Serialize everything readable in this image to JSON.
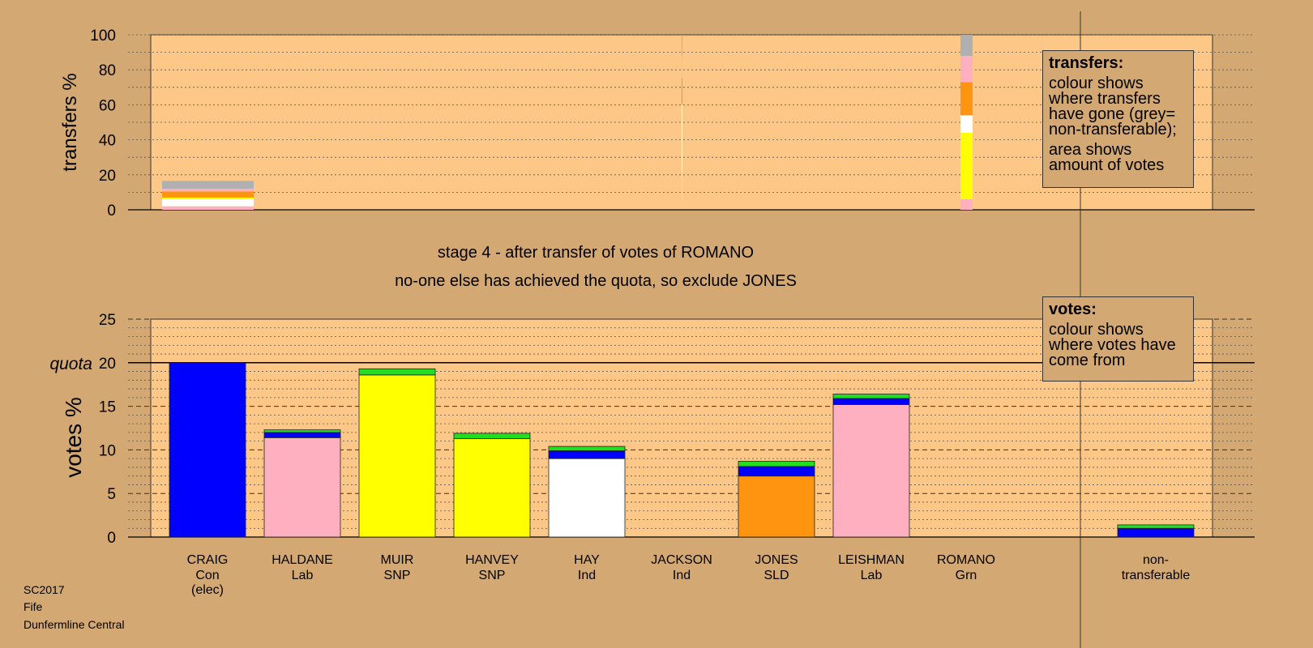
{
  "caption": {
    "line1": "stage 4 - after transfer of votes of ROMANO",
    "line2": "no-one else has achieved the quota, so exclude JONES"
  },
  "legend_transfers": {
    "title": "transfers:",
    "p1": "colour shows where transfers have gone (grey= non-transferable);",
    "p2": "area shows amount of votes"
  },
  "legend_votes": {
    "title": "votes:",
    "p1": "colour shows where votes have come from"
  },
  "footer": {
    "line1": "SC2017",
    "line2": "Fife",
    "line3": "Dunfermline Central"
  },
  "colors": {
    "background": "#d4a872",
    "plot_bg": "#fdc887",
    "Con": "#0000ff",
    "Lab": "#ffb0c0",
    "SNP": "#ffff00",
    "Ind": "#ffffff",
    "SLD": "#ff9410",
    "Grn": "#22dd22",
    "non_transferable": "#b0b0b0"
  },
  "chart_data": [
    {
      "type": "bar",
      "stacked": true,
      "ylabel": "transfers %",
      "ylim": [
        0,
        100
      ],
      "yticks": [
        0,
        20,
        40,
        60,
        80,
        100
      ],
      "columns": [
        {
          "category": "CRAIG",
          "segments": [
            {
              "party": "Lab",
              "from": 0,
              "to": 2
            },
            {
              "party": "Ind",
              "from": 2,
              "to": 6
            },
            {
              "party": "SNP",
              "from": 6,
              "to": 7
            },
            {
              "party": "SLD",
              "from": 7,
              "to": 10.5
            },
            {
              "party": "Lab",
              "from": 10.5,
              "to": 12
            },
            {
              "party": "non_transferable",
              "from": 12,
              "to": 16.5
            }
          ]
        },
        {
          "category": "JACKSON",
          "segments": [
            {
              "party": "SNP",
              "from": 5,
              "to": 22
            },
            {
              "party": "Ind",
              "from": 22,
              "to": 60
            },
            {
              "party": "SLD",
              "from": 60,
              "to": 75
            },
            {
              "party": "Lab",
              "from": 75,
              "to": 88
            },
            {
              "party": "non_transferable",
              "from": 88,
              "to": 100
            }
          ]
        },
        {
          "category": "ROMANO",
          "segments": [
            {
              "party": "Lab",
              "from": 0,
              "to": 6
            },
            {
              "party": "SNP",
              "from": 6,
              "to": 44
            },
            {
              "party": "Ind",
              "from": 44,
              "to": 54
            },
            {
              "party": "SLD",
              "from": 54,
              "to": 73
            },
            {
              "party": "Lab",
              "from": 73,
              "to": 88
            },
            {
              "party": "non_transferable",
              "from": 88,
              "to": 100
            }
          ]
        }
      ]
    },
    {
      "type": "bar",
      "stacked": true,
      "ylabel": "votes %",
      "ylim": [
        0,
        25
      ],
      "yticks": [
        0,
        5,
        10,
        15,
        20,
        25
      ],
      "quota": 20,
      "quota_label": "quota",
      "categories": [
        {
          "name": "CRAIG",
          "party": "Con",
          "note": "(elec)"
        },
        {
          "name": "HALDANE",
          "party": "Lab"
        },
        {
          "name": "MUIR",
          "party": "SNP"
        },
        {
          "name": "HANVEY",
          "party": "SNP"
        },
        {
          "name": "HAY",
          "party": "Ind"
        },
        {
          "name": "JACKSON",
          "party": "Ind"
        },
        {
          "name": "JONES",
          "party": "SLD"
        },
        {
          "name": "LEISHMAN",
          "party": "Lab"
        },
        {
          "name": "ROMANO",
          "party": "Grn"
        },
        {
          "name": "non-",
          "party": "transferable"
        }
      ],
      "stacks": [
        [
          {
            "party": "Con",
            "value": 20.0
          }
        ],
        [
          {
            "party": "Lab",
            "value": 11.4
          },
          {
            "party": "Con",
            "value": 0.6
          },
          {
            "party": "Grn",
            "value": 0.3
          }
        ],
        [
          {
            "party": "SNP",
            "value": 18.6
          },
          {
            "party": "Grn",
            "value": 0.7
          }
        ],
        [
          {
            "party": "SNP",
            "value": 11.3
          },
          {
            "party": "Grn",
            "value": 0.6
          }
        ],
        [
          {
            "party": "Ind",
            "value": 9.0
          },
          {
            "party": "Con",
            "value": 0.9
          },
          {
            "party": "Grn",
            "value": 0.5
          }
        ],
        [
          {
            "party": "Ind",
            "value": 0.0
          }
        ],
        [
          {
            "party": "SLD",
            "value": 7.0
          },
          {
            "party": "Con",
            "value": 1.1
          },
          {
            "party": "Grn",
            "value": 0.6
          }
        ],
        [
          {
            "party": "Lab",
            "value": 15.2
          },
          {
            "party": "Con",
            "value": 0.7
          },
          {
            "party": "Grn",
            "value": 0.5
          }
        ],
        [
          {
            "party": "Grn",
            "value": 0.0
          }
        ],
        [
          {
            "party": "Con",
            "value": 1.0
          },
          {
            "party": "Grn",
            "value": 0.4
          }
        ]
      ]
    }
  ]
}
